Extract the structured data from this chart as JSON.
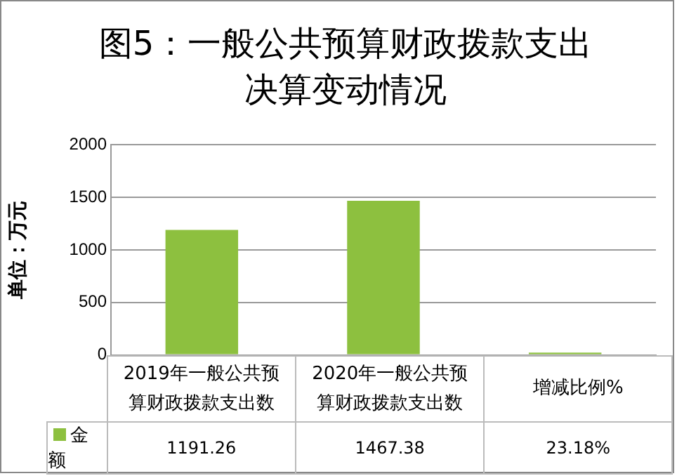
{
  "chart_data": {
    "type": "bar",
    "title": "图5：一般公共预算财政拨款支出决算变动情况",
    "ylabel": "单位：万元",
    "categories": [
      "2019年一般公共预算财政拨款支出数",
      "2020年一般公共预算财政拨款支出数",
      "增减比例%"
    ],
    "series": [
      {
        "name": "金额",
        "color": "#8dc03f",
        "values": [
          1191.26,
          1467.38,
          23.18
        ],
        "value_labels": [
          "1191.26",
          "1467.38",
          "23.18%"
        ]
      }
    ],
    "ylim": [
      0,
      2000
    ],
    "yticks": [
      0,
      500,
      1000,
      1500,
      2000
    ],
    "grid": "y",
    "legend": "bottom"
  }
}
